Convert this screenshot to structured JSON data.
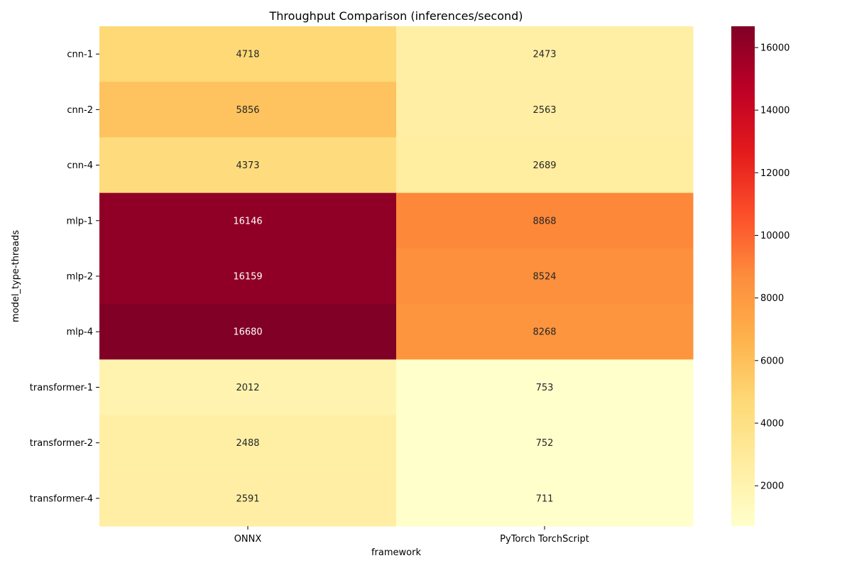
{
  "chart_data": {
    "type": "heatmap",
    "title": "Throughput Comparison (inferences/second)",
    "xlabel": "framework",
    "ylabel": "model_type-threads",
    "columns": [
      "ONNX",
      "PyTorch TorchScript"
    ],
    "rows": [
      "cnn-1",
      "cnn-2",
      "cnn-4",
      "mlp-1",
      "mlp-2",
      "mlp-4",
      "transformer-1",
      "transformer-2",
      "transformer-4"
    ],
    "values": [
      [
        4718,
        2473
      ],
      [
        5856,
        2563
      ],
      [
        4373,
        2689
      ],
      [
        16146,
        8868
      ],
      [
        16159,
        8524
      ],
      [
        16680,
        8268
      ],
      [
        2012,
        753
      ],
      [
        2488,
        752
      ],
      [
        2591,
        711
      ]
    ],
    "colormap": "YlOrRd",
    "colorbar": {
      "min": 711,
      "max": 16680,
      "ticks": [
        2000,
        4000,
        6000,
        8000,
        10000,
        12000,
        14000,
        16000
      ]
    }
  }
}
